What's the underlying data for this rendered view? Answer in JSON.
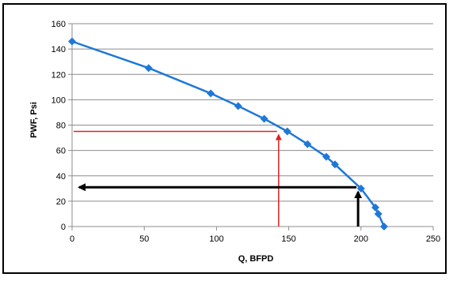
{
  "chart_data": {
    "type": "line",
    "title": "",
    "xlabel": "Q, BFPD",
    "ylabel": "PWF, Psi",
    "xlim": [
      0,
      250
    ],
    "ylim": [
      0,
      160
    ],
    "x_ticks": [
      "0",
      "50",
      "100",
      "150",
      "200",
      "250"
    ],
    "y_ticks": [
      "0",
      "20",
      "40",
      "60",
      "80",
      "100",
      "120",
      "140",
      "160"
    ],
    "grid": "horizontal",
    "legend": "none",
    "series": [
      {
        "color": "#1f78d8",
        "marker": "diamond",
        "x": [
          0,
          53,
          96,
          115,
          133,
          149,
          163,
          176,
          182,
          200,
          210,
          212,
          216
        ],
        "y": [
          146,
          125,
          105,
          95,
          85,
          75,
          65,
          55,
          49,
          30,
          15,
          10,
          0
        ]
      }
    ],
    "annotations": [
      {
        "color": "#e02020",
        "type": "vertical-then-horizontal-arrow",
        "x_from": 143,
        "y_from": 0,
        "x_to": 143,
        "y_to": 75,
        "x_end": 0,
        "y_end": 75
      },
      {
        "color": "#000000",
        "type": "vertical-then-horizontal-arrow",
        "x_from": 198,
        "y_from": 0,
        "x_to": 198,
        "y_to": 31,
        "x_end": 0,
        "y_end": 31
      }
    ]
  }
}
